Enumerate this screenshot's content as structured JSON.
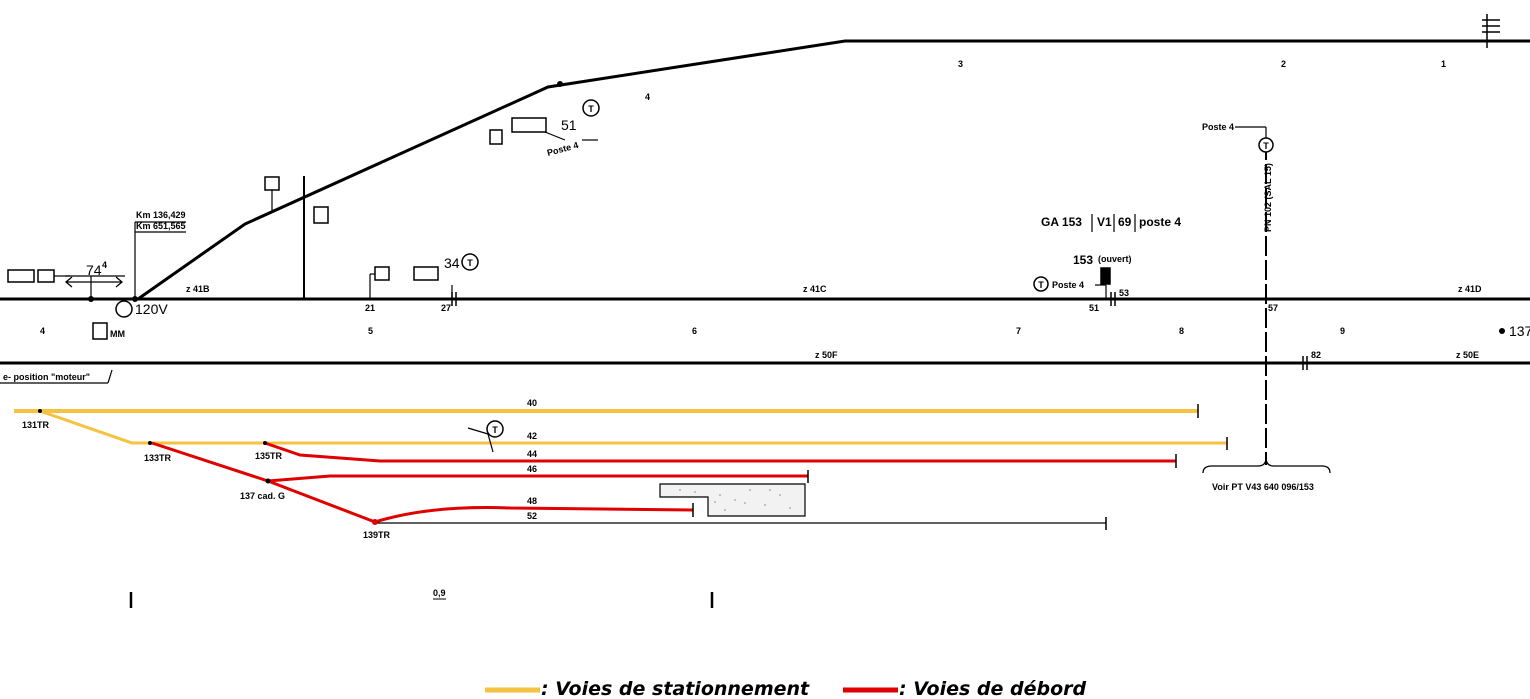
{
  "colors": {
    "track": "#000000",
    "stationnement": "#F5C242",
    "debord": "#E00000"
  },
  "labels": {
    "km1": "Km 136,429",
    "km2": "Km 651,565",
    "speed": "74",
    "speed_sup": "4",
    "voltage": "120V",
    "mm": "MM",
    "position_moteur": "e- position \"moteur\"",
    "num_51": "51",
    "poste4_a": "Poste 4",
    "num_34": "34",
    "ga153": "GA 153",
    "v1": "V1",
    "n69": "69",
    "poste4_b": "poste 4",
    "n153": "153",
    "ouvert": "(ouvert)",
    "poste4_c": "Poste 4",
    "poste4_d": "Poste 4",
    "pn": "PN 102 (SAL 15)",
    "voir_pt": "Voir PT V43 640 096/153",
    "lbl_131tr": "131TR",
    "lbl_133tr": "133TR",
    "lbl_135tr": "135TR",
    "lbl_137": "137 cad. G",
    "lbl_139tr": "139TR",
    "z41b": "z 41B",
    "z41c": "z 41C",
    "z41d": "z 41D",
    "z50f": "z 50F",
    "z50e": "z 50E",
    "v40": "40",
    "v42": "42",
    "v44": "44",
    "v46": "46",
    "v48": "48",
    "v52": "52",
    "s4": "4",
    "s5": "5",
    "s6": "6",
    "s7": "7",
    "s8": "8",
    "s9": "9",
    "s137": "137",
    "u3": "3",
    "u2": "2",
    "u1": "1",
    "u4": "4",
    "sw21": "21",
    "sw27": "27",
    "sw51": "51",
    "sw53": "53",
    "sw57": "57",
    "sw82": "82",
    "scale_09": "0,9"
  },
  "legend": {
    "stationnement": ": Voies de stationnement",
    "debord": ": Voies de débord"
  }
}
